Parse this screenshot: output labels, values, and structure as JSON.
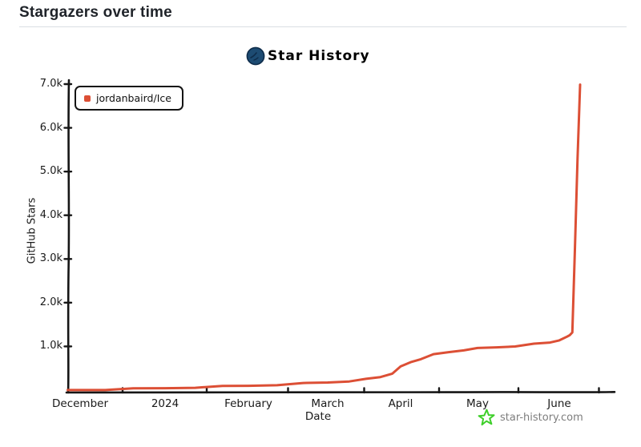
{
  "header": {
    "title": "Stargazers over time"
  },
  "chart": {
    "title": "Star History",
    "logo_color": "#1d4b72"
  },
  "chart_data": {
    "type": "line",
    "title": "Star History",
    "xlabel": "Date",
    "ylabel": "GitHub Stars",
    "x_ticks": [
      "December",
      "2024",
      "February",
      "March",
      "April",
      "May",
      "June"
    ],
    "y_ticks": [
      "1.0k",
      "2.0k",
      "3.0k",
      "4.0k",
      "5.0k",
      "6.0k",
      "7.0k"
    ],
    "ylim": [
      0,
      7000
    ],
    "grid": false,
    "legend_position": "top-left",
    "series": [
      {
        "name": "jordanbaird/Ice",
        "color": "#dc4f35",
        "points": [
          [
            "2023-11-27",
            2
          ],
          [
            "2023-12-10",
            15
          ],
          [
            "2023-12-20",
            28
          ],
          [
            "2024-01-01",
            45
          ],
          [
            "2024-01-12",
            65
          ],
          [
            "2024-01-22",
            85
          ],
          [
            "2024-02-01",
            100
          ],
          [
            "2024-02-12",
            125
          ],
          [
            "2024-02-22",
            150
          ],
          [
            "2024-03-01",
            175
          ],
          [
            "2024-03-10",
            210
          ],
          [
            "2024-03-17",
            245
          ],
          [
            "2024-03-23",
            300
          ],
          [
            "2024-03-28",
            390
          ],
          [
            "2024-04-01",
            530
          ],
          [
            "2024-04-05",
            640
          ],
          [
            "2024-04-09",
            720
          ],
          [
            "2024-04-14",
            810
          ],
          [
            "2024-04-20",
            870
          ],
          [
            "2024-04-26",
            920
          ],
          [
            "2024-05-01",
            950
          ],
          [
            "2024-05-08",
            980
          ],
          [
            "2024-05-15",
            1010
          ],
          [
            "2024-05-22",
            1050
          ],
          [
            "2024-05-28",
            1090
          ],
          [
            "2024-06-01",
            1150
          ],
          [
            "2024-06-04",
            1210
          ],
          [
            "2024-06-05",
            1260
          ],
          [
            "2024-06-06",
            1330
          ],
          [
            "2024-06-07",
            3200
          ],
          [
            "2024-06-08",
            5300
          ],
          [
            "2024-06-09",
            7000
          ]
        ]
      }
    ]
  },
  "footer": {
    "watermark": "star-history.com",
    "star_color": "#3ecf2a",
    "text_color": "#7d7d7d"
  }
}
